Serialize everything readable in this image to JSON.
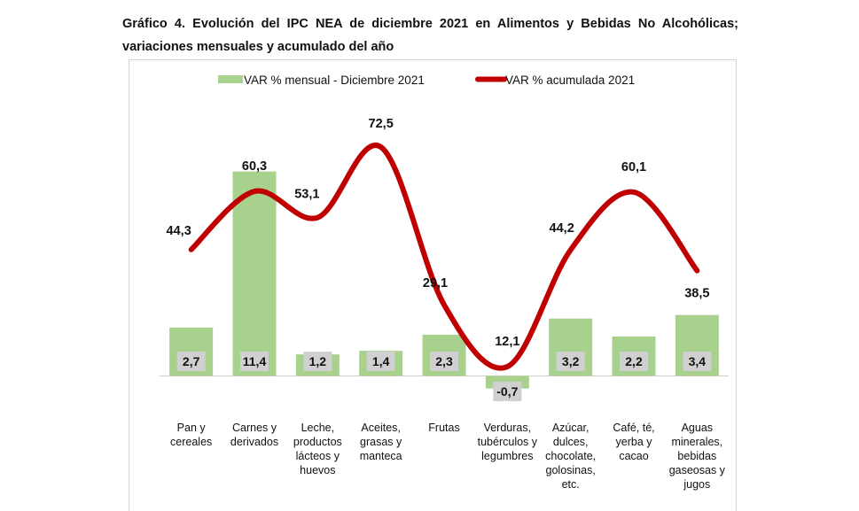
{
  "title": "Gráfico 4. Evolución del IPC NEA de diciembre 2021 en Alimentos y Bebidas No Alcohólicas; variaciones mensuales y acumulado del año",
  "colors": {
    "bar": "#a9d18e",
    "line": "#c00000",
    "bar_label_bg": "#d0d0d0",
    "axis": "#d0d0d0",
    "text": "#111111"
  },
  "chart_data": {
    "type": "bar",
    "title": "Gráfico 4. Evolución del IPC NEA de diciembre 2021 en Alimentos y Bebidas No Alcohólicas; variaciones mensuales y acumulado del año",
    "xlabel": "",
    "ylabel": "",
    "grid": false,
    "legend_position": "top-center",
    "categories": [
      [
        "Pan y",
        "cereales"
      ],
      [
        "Carnes y",
        "derivados"
      ],
      [
        "Leche,",
        "productos",
        "lácteos y",
        "huevos"
      ],
      [
        "Aceites,",
        "grasas y",
        "manteca"
      ],
      [
        "Frutas"
      ],
      [
        "Verduras,",
        "tubérculos y",
        "legumbres"
      ],
      [
        "Azúcar,",
        "dulces,",
        "chocolate,",
        "golosinas,",
        "etc."
      ],
      [
        "Café, té,",
        "yerba y",
        "cacao"
      ],
      [
        "Aguas",
        "minerales,",
        "bebidas",
        "gaseosas y",
        "jugos"
      ]
    ],
    "series": [
      {
        "name": "VAR % mensual - Diciembre 2021",
        "type": "bar",
        "axis": "primary",
        "values": [
          2.7,
          11.4,
          1.2,
          1.4,
          2.3,
          -0.7,
          3.2,
          2.2,
          3.4
        ],
        "labels": [
          "2,7",
          "11,4",
          "1,2",
          "1,4",
          "2,3",
          "-0,7",
          "3,2",
          "2,2",
          "3,4"
        ]
      },
      {
        "name": "VAR % acumulada 2021",
        "type": "line",
        "smooth": true,
        "axis": "secondary",
        "values": [
          44.3,
          60.3,
          53.1,
          72.5,
          29.1,
          12.1,
          44.2,
          60.1,
          38.5
        ],
        "labels": [
          "44,3",
          "60,3",
          "53,1",
          "72,5",
          "29,1",
          "12,1",
          "44,2",
          "60,1",
          "38,5"
        ]
      }
    ],
    "ylim_primary": [
      -1.5,
      12.5
    ],
    "ylim_secondary": [
      0,
      80
    ]
  }
}
